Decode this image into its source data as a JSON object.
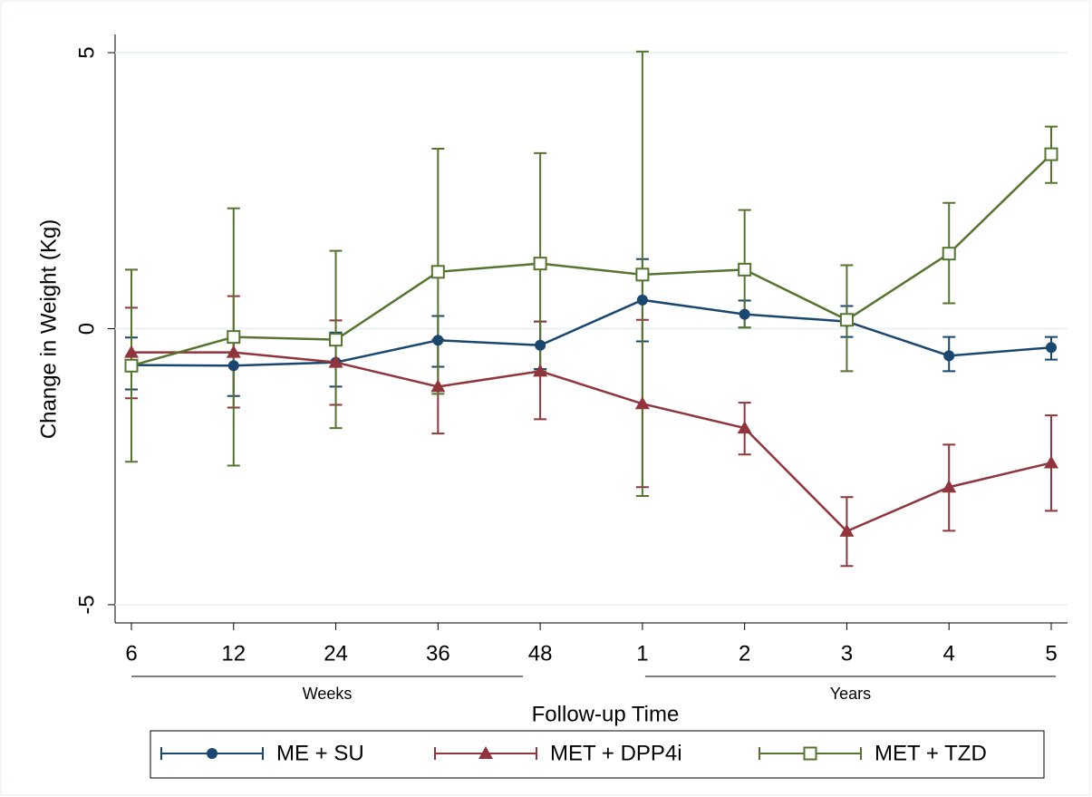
{
  "chart_data": {
    "type": "line",
    "y_label": "Change in Weight (Kg)",
    "x_label": "Follow-up Time",
    "categories": [
      "6",
      "12",
      "24",
      "36",
      "48",
      "1",
      "2",
      "3",
      "4",
      "5"
    ],
    "groups": [
      {
        "label": "Weeks",
        "from": 0,
        "to": 4
      },
      {
        "label": "Years",
        "from": 5,
        "to": 9
      }
    ],
    "ylim": [
      -5.33,
      5.33
    ],
    "yticks": [
      -5,
      0,
      5
    ],
    "grid": true,
    "series": [
      {
        "name": "ME + SU",
        "color": "#1a476f",
        "marker": "circle",
        "values": [
          -0.66,
          -0.67,
          -0.61,
          -0.21,
          -0.3,
          0.52,
          0.26,
          0.13,
          -0.49,
          -0.34
        ],
        "upper": [
          -0.16,
          -0.12,
          -0.07,
          0.23,
          0.13,
          1.26,
          0.51,
          0.41,
          -0.15,
          -0.15
        ],
        "lower": [
          -1.1,
          -1.22,
          -1.05,
          -0.69,
          -0.73,
          -0.23,
          0.02,
          -0.15,
          -0.77,
          -0.56
        ]
      },
      {
        "name": "MET + DPP4i",
        "color": "#90353b",
        "marker": "triangle",
        "values": [
          -0.43,
          -0.43,
          -0.61,
          -1.05,
          -0.77,
          -1.36,
          -1.8,
          -3.67,
          -2.87,
          -2.43
        ],
        "upper": [
          0.38,
          0.59,
          0.15,
          -0.2,
          0.13,
          0.16,
          -1.34,
          -3.05,
          -2.1,
          -1.57
        ],
        "lower": [
          -1.26,
          -1.43,
          -1.38,
          -1.9,
          -1.64,
          -2.87,
          -2.28,
          -4.3,
          -3.66,
          -3.3
        ]
      },
      {
        "name": "MET + TZD",
        "color": "#55752f",
        "marker": "square",
        "values": [
          -0.67,
          -0.15,
          -0.2,
          1.03,
          1.18,
          0.98,
          1.07,
          0.16,
          1.36,
          3.16
        ],
        "upper": [
          1.07,
          2.18,
          1.41,
          3.26,
          3.18,
          5.02,
          2.15,
          1.15,
          2.28,
          3.66
        ],
        "lower": [
          -2.41,
          -2.48,
          -1.8,
          -1.18,
          -0.77,
          -3.03,
          0.02,
          -0.77,
          0.46,
          2.64
        ]
      }
    ]
  }
}
